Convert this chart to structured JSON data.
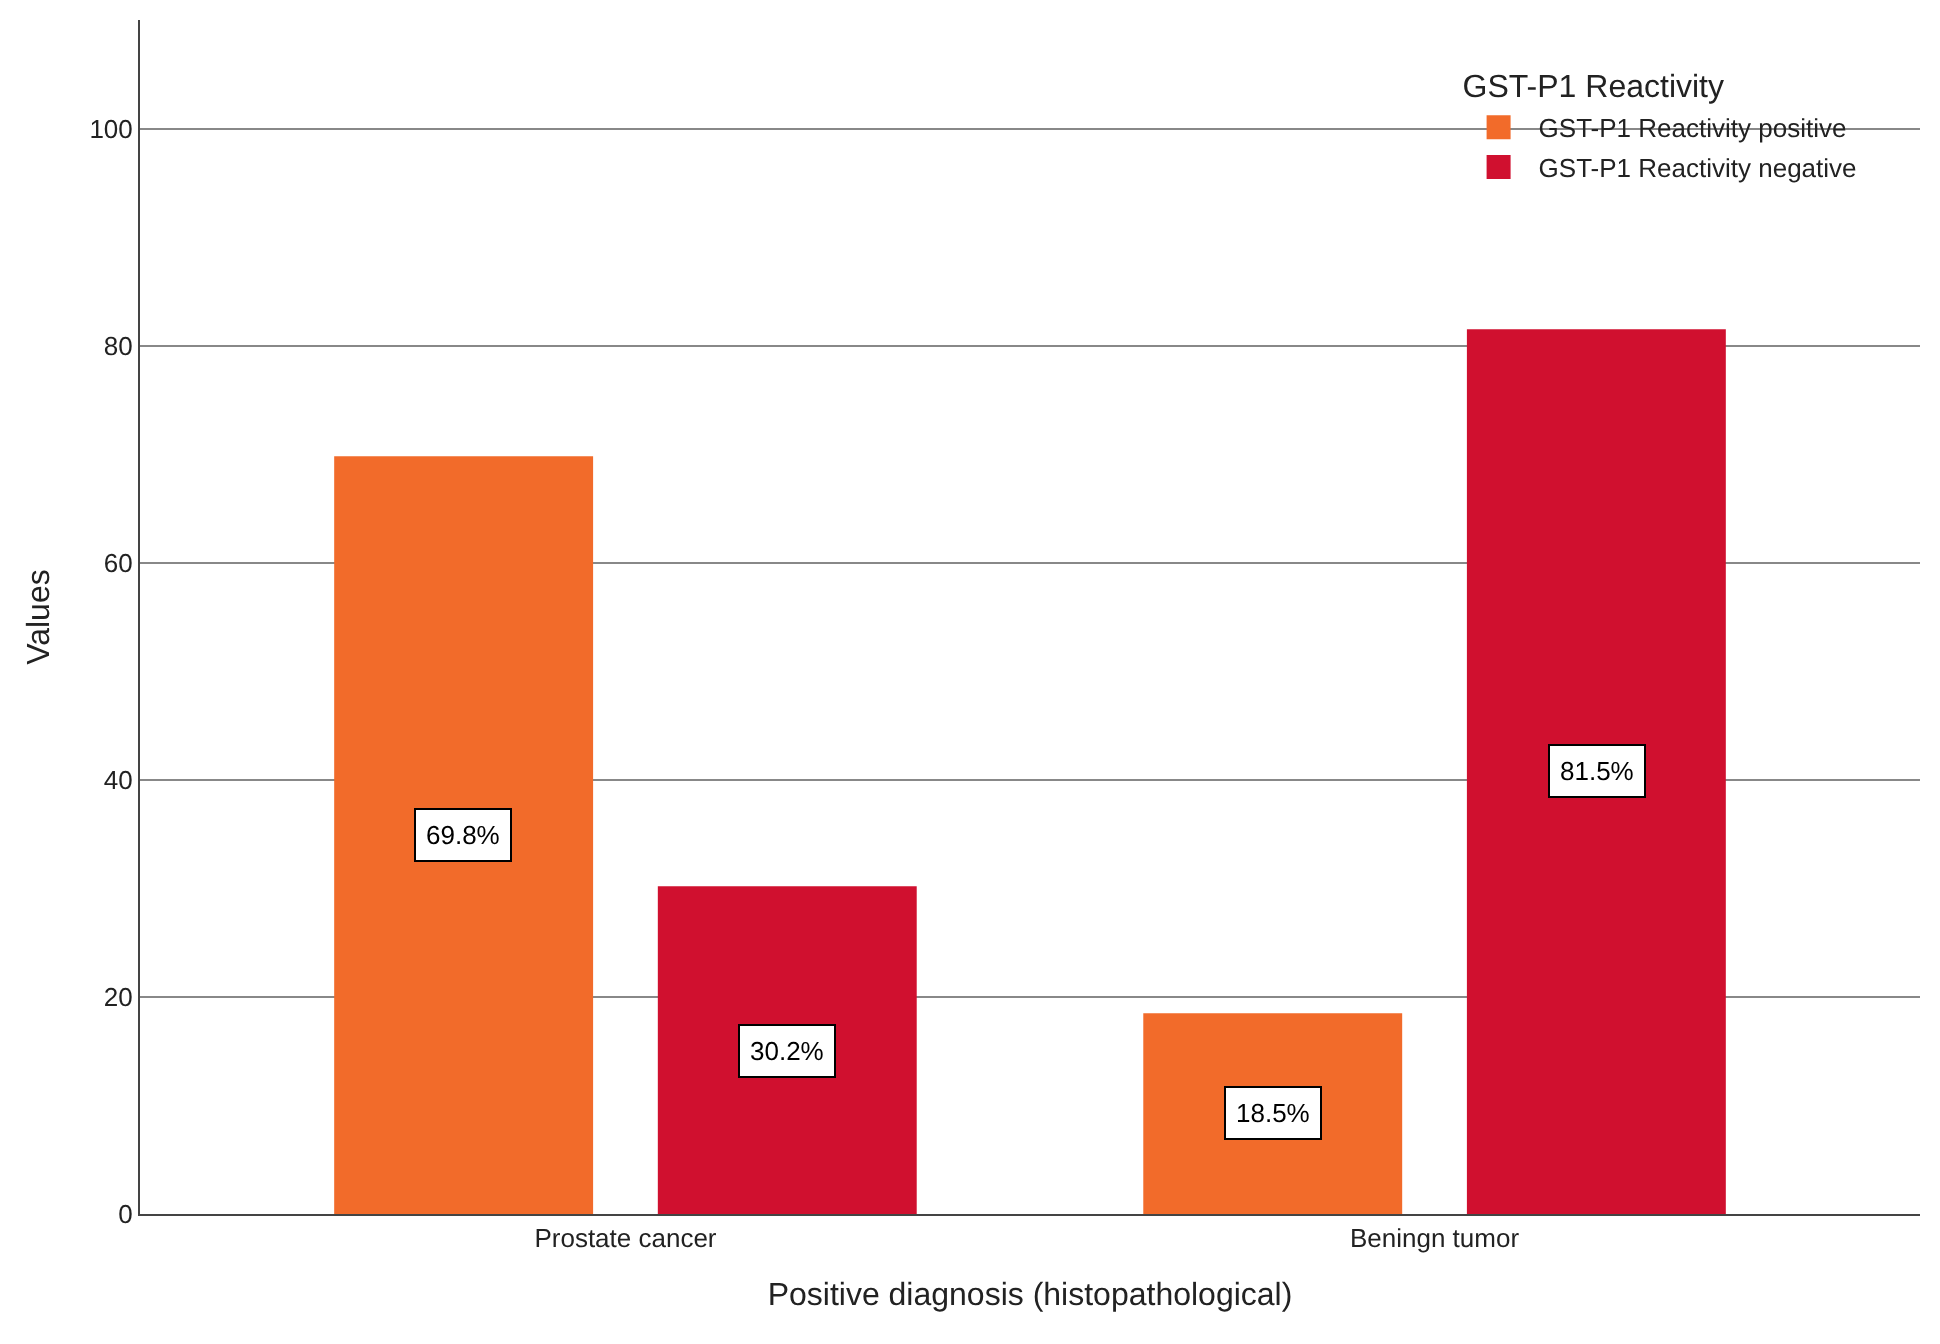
{
  "chart_data": {
    "type": "bar",
    "xlabel": "Positive diagnosis (histopathological)",
    "ylabel": "Values",
    "legend_title": "GST-P1 Reactivity",
    "categories": [
      "Prostate cancer",
      "Beningn tumor"
    ],
    "series": [
      {
        "name": "GST-P1 Reactivity positive",
        "color": "#f26b2a",
        "values": [
          69.8,
          18.5
        ],
        "value_labels": [
          "69.8%",
          "18.5%"
        ]
      },
      {
        "name": "GST-P1 Reactivity negative",
        "color": "#d0102f",
        "values": [
          30.2,
          81.5
        ],
        "value_labels": [
          "30.2%",
          "81.5%"
        ]
      }
    ],
    "ylim": [
      0,
      110
    ],
    "yticks": [
      0,
      20,
      40,
      60,
      80,
      100
    ],
    "grid": "y",
    "legend": "top right"
  }
}
